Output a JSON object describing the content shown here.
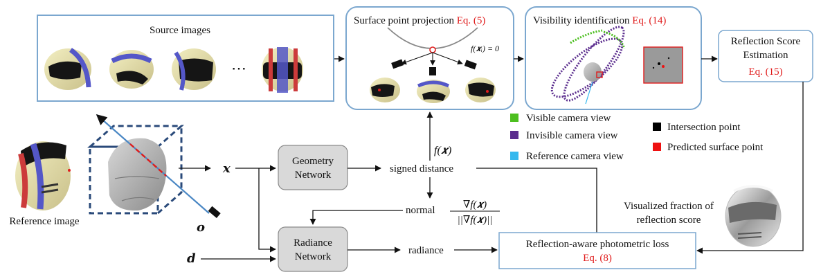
{
  "source_images": {
    "title": "Source images",
    "ellipsis": "⋯"
  },
  "projection": {
    "title": "Surface point projection",
    "eq": "Eq. (5)",
    "formula": "f(𝒙ᵢ) = 0"
  },
  "visibility": {
    "title": "Visibility identification",
    "eq": "Eq. (14)"
  },
  "reflection_score": {
    "line1": "Reflection Score",
    "line2": "Estimation",
    "eq": "Eq. (15)"
  },
  "legend": {
    "visible": "Visible camera view",
    "invisible": "Invisible camera view",
    "reference": "Reference camera view",
    "intersection": "Intersection point",
    "predicted": "Predicted surface point",
    "colors": {
      "visible": "#4cbf1f",
      "invisible": "#5b2d8e",
      "reference": "#35b8ee",
      "intersection": "#000000",
      "predicted": "#ee1111"
    }
  },
  "reference_image_label": "Reference image",
  "symbols": {
    "x": "𝒙",
    "o": "𝒐",
    "d": "𝒅",
    "fx": "f(𝒙)"
  },
  "geometry_network": {
    "line1": "Geometry",
    "line2": "Network"
  },
  "radiance_network": {
    "line1": "Radiance",
    "line2": "Network"
  },
  "signed_distance": "signed distance",
  "normal": {
    "label": "normal",
    "numerator": "∇f(𝒙)",
    "denominator": "||∇f(𝒙)||"
  },
  "radiance": "radiance",
  "loss": {
    "title": "Reflection-aware photometric loss",
    "eq": "Eq. (8)"
  },
  "fraction_caption": {
    "line1": "Visualized fraction of",
    "line2": "reflection score"
  }
}
